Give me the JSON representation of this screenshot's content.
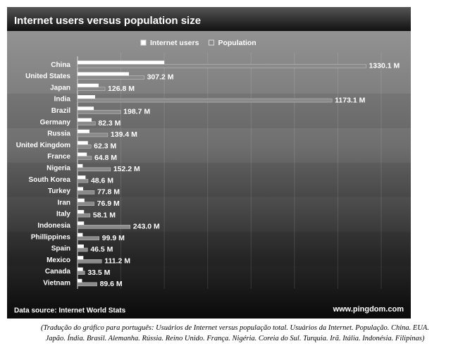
{
  "chart_data": {
    "type": "bar",
    "orientation": "horizontal",
    "title": "Internet users versus population size",
    "categories": [
      "China",
      "United States",
      "Japan",
      "India",
      "Brazil",
      "Germany",
      "Russia",
      "United Kingdom",
      "France",
      "Nigeria",
      "South Korea",
      "Turkey",
      "Iran",
      "Italy",
      "Indonesia",
      "Phillippines",
      "Spain",
      "Mexico",
      "Canada",
      "Vietnam"
    ],
    "series": [
      {
        "name": "Internet users",
        "color": "#ffffff",
        "values": [
          400,
          237,
          97,
          81,
          75,
          65,
          55,
          48,
          43,
          24,
          37,
          26,
          32,
          30,
          30,
          24,
          29,
          27,
          25,
          21
        ]
      },
      {
        "name": "Population",
        "color": "#8a8a8a",
        "values": [
          1330.1,
          307.2,
          126.8,
          1173.1,
          198.7,
          82.3,
          139.4,
          62.3,
          64.8,
          152.2,
          48.6,
          77.8,
          76.9,
          58.1,
          243.0,
          99.9,
          46.5,
          111.2,
          33.5,
          89.6
        ],
        "value_labels": [
          "1330.1 M",
          "307.2 M",
          "126.8 M",
          "1173.1 M",
          "198.7 M",
          "82.3 M",
          "139.4 M",
          "62.3 M",
          "64.8 M",
          "152.2 M",
          "48.6 M",
          "77.8 M",
          "76.9 M",
          "58.1 M",
          "243.0 M",
          "99.9 M",
          "46.5 M",
          "111.2 M",
          "33.5 M",
          "89.6 M"
        ]
      }
    ],
    "xlim": [
      0,
      1400
    ],
    "source": "Data source: Internet World Stats",
    "brand": "www.pingdom.com",
    "caption": [
      "(Tradução do gráfico para português: Usuários de Internet versus população total. Usuários da Internet. População. China. EUA.",
      "Japão. Índia. Brasil. Alemanha. Rússia. Reino Unido. França. Nigéria. Coreia do Sul. Turquia. Irã. Itália. Indonésia. Filipinas)"
    ]
  }
}
